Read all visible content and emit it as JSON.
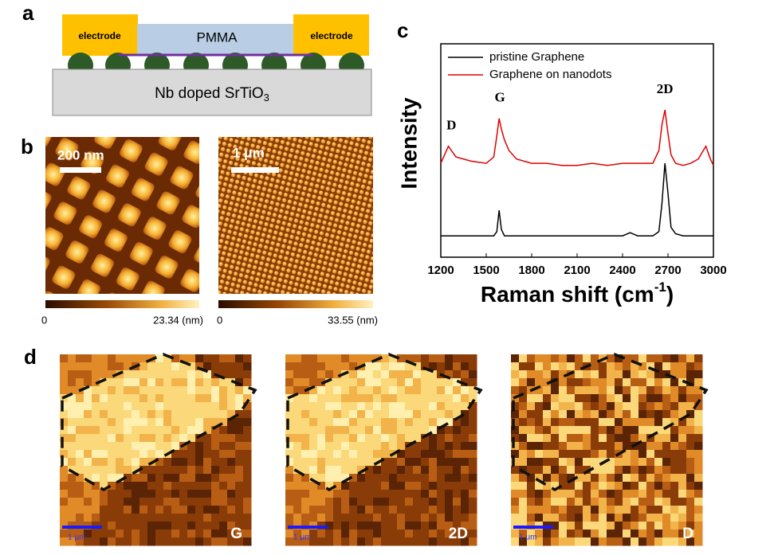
{
  "panel_a": {
    "label": "a",
    "electrode_left": "electrode",
    "electrode_right": "electrode",
    "pmma": "PMMA",
    "substrate": "Nb doped SrTiO",
    "substrate_sub": "3"
  },
  "panel_b": {
    "label": "b",
    "left_scale": "200 nm",
    "right_scale": "1 μm",
    "left_cbar_min": "0",
    "left_cbar_max": "23.34 (nm)",
    "right_cbar_min": "0",
    "right_cbar_max": "33.55 (nm)"
  },
  "panel_d": {
    "label": "d",
    "maps": [
      {
        "name": "G",
        "scale": "1 μm"
      },
      {
        "name": "2D",
        "scale": "1 μm"
      },
      {
        "name": "D",
        "scale": "1 μm"
      }
    ]
  },
  "chart_data": {
    "type": "line",
    "label": "c",
    "ylabel": "Intensity",
    "xlabel": "Raman shift  (cm",
    "xlabel_sup": "-1",
    "xlabel_end": ")",
    "peaks": [
      {
        "text": "D",
        "x": 1270
      },
      {
        "text": "G",
        "x": 1590
      },
      {
        "text": "2D",
        "x": 2680
      }
    ],
    "x": [
      1200,
      1250,
      1300,
      1400,
      1500,
      1550,
      1570,
      1585,
      1600,
      1620,
      1650,
      1700,
      1800,
      1900,
      2000,
      2100,
      2200,
      2300,
      2400,
      2450,
      2500,
      2600,
      2640,
      2660,
      2680,
      2700,
      2720,
      2750,
      2800,
      2850,
      2900,
      2950,
      2980,
      3000
    ],
    "series": [
      {
        "name": "pristine Graphene",
        "color": "#000000",
        "values": [
          10,
          10,
          10,
          10,
          10,
          10,
          12,
          22,
          13,
          10,
          10,
          10,
          10,
          10,
          10,
          10,
          10,
          10,
          10,
          11.5,
          10,
          10,
          12,
          25,
          44,
          30,
          14,
          11,
          10,
          10,
          10,
          10,
          10,
          10
        ]
      },
      {
        "name": "Graphene on nanodots",
        "color": "#e00000",
        "values": [
          44,
          52,
          47,
          45,
          44,
          47,
          57,
          65,
          60,
          55,
          50,
          46,
          44,
          44,
          43,
          43,
          44,
          43,
          44,
          44,
          44,
          44,
          50,
          62,
          69,
          58,
          48,
          44,
          43,
          44,
          46,
          52,
          46,
          43
        ]
      }
    ],
    "xlim": [
      1200,
      3000
    ],
    "xticks": [
      1200,
      1500,
      1800,
      2100,
      2400,
      2700,
      3000
    ],
    "ylim": [
      0,
      100
    ]
  }
}
